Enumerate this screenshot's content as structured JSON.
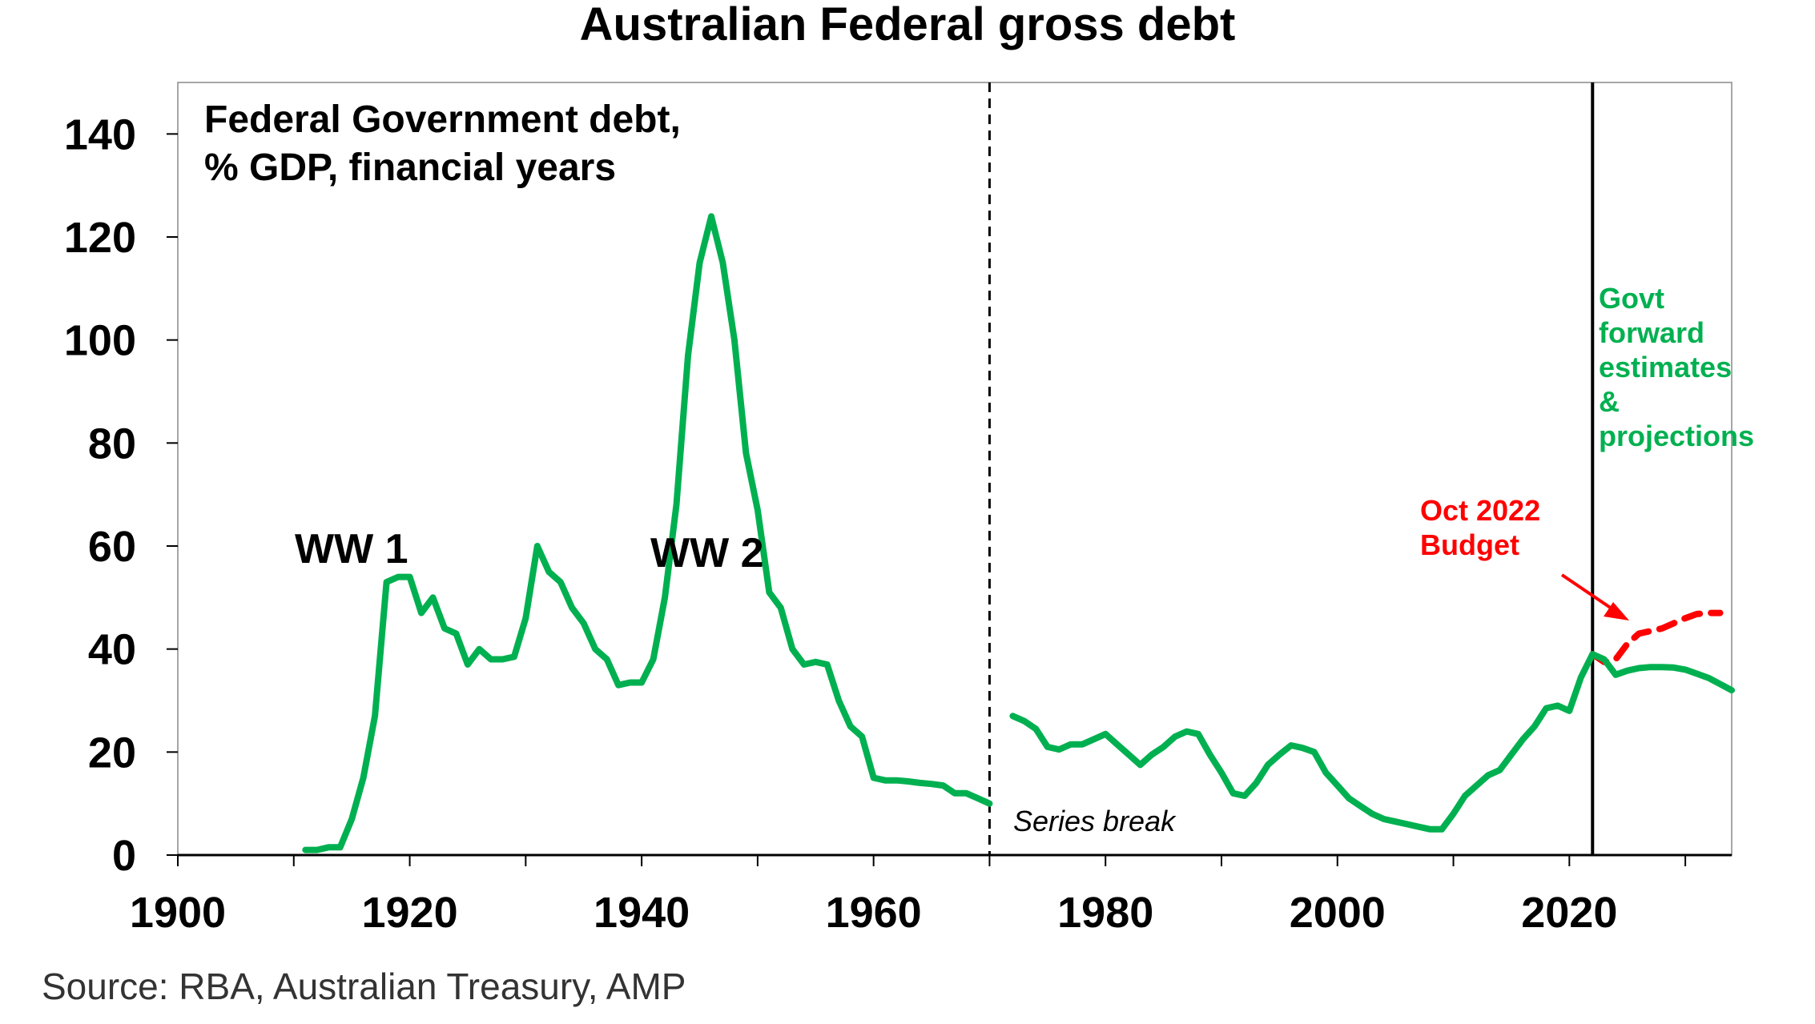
{
  "chart_data": {
    "type": "line",
    "title": "Australian Federal gross debt",
    "subtitle_lines": [
      "Federal Government debt,",
      "% GDP, financial years"
    ],
    "source": "Source: RBA, Australian Treasury, AMP",
    "xlim": [
      1900,
      2034
    ],
    "ylim": [
      0,
      150
    ],
    "x_ticks": [
      1900,
      1920,
      1940,
      1960,
      1980,
      2000,
      2020
    ],
    "y_ticks": [
      0,
      20,
      40,
      60,
      80,
      100,
      120,
      140
    ],
    "colors": {
      "green": "#00b050",
      "red": "#ff0000",
      "axis": "#000000"
    },
    "series": [
      {
        "values": [
          [
            1911,
            1
          ],
          [
            1912,
            1
          ],
          [
            1913,
            1.5
          ],
          [
            1914,
            1.5
          ],
          [
            1915,
            7
          ],
          [
            1916,
            15
          ],
          [
            1917,
            27
          ],
          [
            1918,
            53
          ],
          [
            1919,
            54
          ],
          [
            1920,
            54
          ],
          [
            1921,
            47
          ],
          [
            1922,
            50
          ],
          [
            1923,
            44
          ],
          [
            1924,
            43
          ],
          [
            1925,
            37
          ],
          [
            1926,
            40
          ],
          [
            1927,
            38
          ],
          [
            1928,
            38
          ],
          [
            1929,
            38.5
          ],
          [
            1930,
            46
          ],
          [
            1931,
            60
          ],
          [
            1932,
            55
          ],
          [
            1933,
            53
          ],
          [
            1934,
            48
          ],
          [
            1935,
            45
          ],
          [
            1936,
            40
          ],
          [
            1937,
            38
          ],
          [
            1938,
            33
          ],
          [
            1939,
            33.5
          ],
          [
            1940,
            33.5
          ],
          [
            1941,
            38
          ],
          [
            1942,
            50
          ],
          [
            1943,
            68
          ],
          [
            1944,
            97
          ],
          [
            1945,
            115
          ],
          [
            1946,
            124
          ],
          [
            1947,
            115
          ],
          [
            1948,
            100
          ],
          [
            1949,
            78
          ],
          [
            1950,
            67
          ],
          [
            1951,
            51
          ],
          [
            1952,
            48
          ],
          [
            1953,
            40
          ],
          [
            1954,
            37
          ],
          [
            1955,
            37.5
          ],
          [
            1956,
            37
          ],
          [
            1957,
            30
          ],
          [
            1958,
            25
          ],
          [
            1959,
            23
          ],
          [
            1960,
            15
          ],
          [
            1961,
            14.5
          ],
          [
            1962,
            14.5
          ],
          [
            1963,
            14.3
          ],
          [
            1964,
            14
          ],
          [
            1965,
            13.8
          ],
          [
            1966,
            13.5
          ],
          [
            1967,
            12
          ],
          [
            1968,
            12
          ],
          [
            1969,
            11
          ],
          [
            1970,
            10
          ]
        ]
      },
      {
        "values": [
          [
            1972,
            27
          ],
          [
            1973,
            26
          ],
          [
            1974,
            24.5
          ],
          [
            1975,
            21
          ],
          [
            1976,
            20.5
          ],
          [
            1977,
            21.5
          ],
          [
            1978,
            21.5
          ],
          [
            1979,
            22.5
          ],
          [
            1980,
            23.5
          ],
          [
            1981,
            21.5
          ],
          [
            1982,
            19.5
          ],
          [
            1983,
            17.5
          ],
          [
            1984,
            19.5
          ],
          [
            1985,
            21
          ],
          [
            1986,
            23
          ],
          [
            1987,
            24
          ],
          [
            1988,
            23.5
          ],
          [
            1989,
            19.5
          ],
          [
            1990,
            16
          ],
          [
            1991,
            12
          ],
          [
            1992,
            11.5
          ],
          [
            1993,
            14
          ],
          [
            1994,
            17.5
          ],
          [
            1995,
            19.5
          ],
          [
            1996,
            21.3
          ],
          [
            1997,
            20.8
          ],
          [
            1998,
            20
          ],
          [
            1999,
            16
          ],
          [
            2000,
            13.5
          ],
          [
            2001,
            11
          ],
          [
            2002,
            9.5
          ],
          [
            2003,
            8
          ],
          [
            2004,
            7
          ],
          [
            2005,
            6.5
          ],
          [
            2006,
            6
          ],
          [
            2007,
            5.5
          ],
          [
            2008,
            5
          ],
          [
            2009,
            5
          ],
          [
            2010,
            8
          ],
          [
            2011,
            11.5
          ],
          [
            2012,
            13.5
          ],
          [
            2013,
            15.5
          ],
          [
            2014,
            16.5
          ],
          [
            2015,
            19.5
          ],
          [
            2016,
            22.5
          ],
          [
            2017,
            25
          ],
          [
            2018,
            28.5
          ],
          [
            2019,
            29
          ],
          [
            2020,
            28
          ],
          [
            2021,
            34.5
          ],
          [
            2022,
            39
          ],
          [
            2023,
            38
          ],
          [
            2024,
            35
          ],
          [
            2025,
            35.8
          ],
          [
            2026,
            36.3
          ],
          [
            2027,
            36.5
          ],
          [
            2028,
            36.5
          ],
          [
            2029,
            36.4
          ],
          [
            2030,
            36
          ],
          [
            2031,
            35.2
          ],
          [
            2032,
            34.4
          ],
          [
            2033,
            33.2
          ],
          [
            2034,
            32
          ]
        ]
      },
      {
        "style": "dashed",
        "values": [
          [
            2022,
            39
          ],
          [
            2023,
            37.5
          ],
          [
            2024,
            38
          ],
          [
            2025,
            41
          ],
          [
            2026,
            43
          ],
          [
            2027,
            43.5
          ],
          [
            2028,
            44
          ],
          [
            2029,
            45
          ],
          [
            2030,
            46
          ],
          [
            2031,
            46.8
          ],
          [
            2032,
            47
          ],
          [
            2033,
            47
          ]
        ]
      }
    ],
    "annotations": {
      "ww1": "WW 1",
      "ww2": "WW 2",
      "series_break": "Series break",
      "budget_lines": [
        "Oct 2022",
        "Budget"
      ],
      "forward_lines": [
        "Govt",
        "forward",
        "estimates",
        "&",
        "projections"
      ]
    },
    "vertical_lines": [
      {
        "x": 1970,
        "style": "dashed"
      },
      {
        "x": 2022,
        "style": "solid"
      }
    ]
  }
}
